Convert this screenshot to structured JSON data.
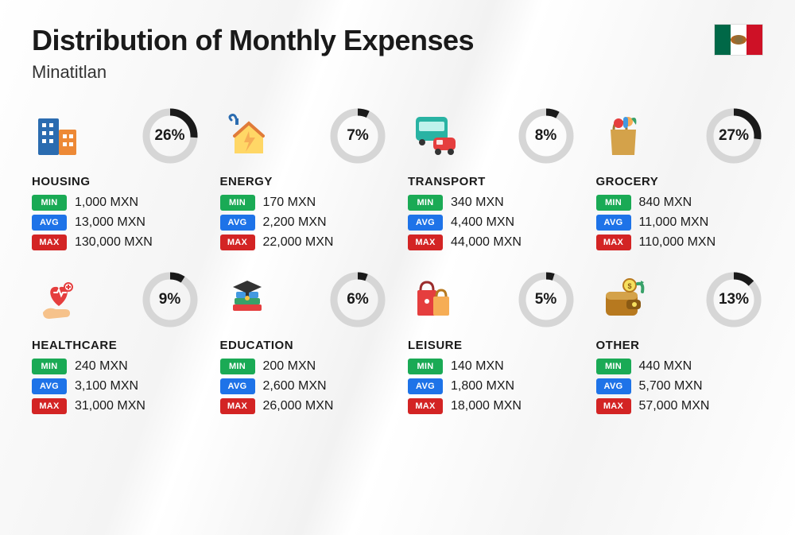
{
  "title": "Distribution of Monthly Expenses",
  "subtitle": "Minatitlan",
  "currency": "MXN",
  "colors": {
    "text": "#1a1a1a",
    "donut_track": "#d6d6d6",
    "donut_fill": "#1a1a1a",
    "badge_min": "#1aaa55",
    "badge_avg": "#1e73e8",
    "badge_max": "#d32424"
  },
  "badges": {
    "min": "MIN",
    "avg": "AVG",
    "max": "MAX"
  },
  "donut": {
    "radius": 30,
    "stroke": 9
  },
  "flag": {
    "left": "#006847",
    "mid": "#ffffff",
    "right": "#ce1126"
  },
  "categories": [
    {
      "key": "housing",
      "label": "HOUSING",
      "percent": 26,
      "min": "1,000 MXN",
      "avg": "13,000 MXN",
      "max": "130,000 MXN",
      "icon": "buildings"
    },
    {
      "key": "energy",
      "label": "ENERGY",
      "percent": 7,
      "min": "170 MXN",
      "avg": "2,200 MXN",
      "max": "22,000 MXN",
      "icon": "house-bolt"
    },
    {
      "key": "transport",
      "label": "TRANSPORT",
      "percent": 8,
      "min": "340 MXN",
      "avg": "4,400 MXN",
      "max": "44,000 MXN",
      "icon": "bus-car"
    },
    {
      "key": "grocery",
      "label": "GROCERY",
      "percent": 27,
      "min": "840 MXN",
      "avg": "11,000 MXN",
      "max": "110,000 MXN",
      "icon": "grocery-bag"
    },
    {
      "key": "healthcare",
      "label": "HEALTHCARE",
      "percent": 9,
      "min": "240 MXN",
      "avg": "3,100 MXN",
      "max": "31,000 MXN",
      "icon": "heart-hand"
    },
    {
      "key": "education",
      "label": "EDUCATION",
      "percent": 6,
      "min": "200 MXN",
      "avg": "2,600 MXN",
      "max": "26,000 MXN",
      "icon": "books-cap"
    },
    {
      "key": "leisure",
      "label": "LEISURE",
      "percent": 5,
      "min": "140 MXN",
      "avg": "1,800 MXN",
      "max": "18,000 MXN",
      "icon": "shopping-bags"
    },
    {
      "key": "other",
      "label": "OTHER",
      "percent": 13,
      "min": "440 MXN",
      "avg": "5,700 MXN",
      "max": "57,000 MXN",
      "icon": "wallet"
    }
  ]
}
